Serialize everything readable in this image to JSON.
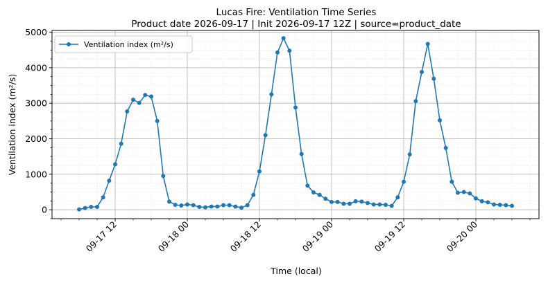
{
  "chart_data": {
    "type": "line",
    "title": "Lucas Fire: Ventilation Time Series",
    "subtitle": "Product date 2026-09-17 | Init 2026-09-17 12Z | source=product_date",
    "xlabel": "Time (local)",
    "ylabel": "Ventilation index (m²/s)",
    "x_tick_labels": [
      "09-17 12",
      "09-18 00",
      "09-18 12",
      "09-19 00",
      "09-19 12",
      "09-20 00"
    ],
    "x_tick_hours": [
      12,
      24,
      36,
      48,
      60,
      72
    ],
    "x_range_hours": [
      1.5,
      82.5
    ],
    "ylim": [
      -250,
      5050
    ],
    "y_ticks": [
      0,
      1000,
      2000,
      3000,
      4000,
      5000
    ],
    "grid": true,
    "legend_position": "top-left",
    "colors": {
      "series": "#1f77b4",
      "grid_major": "#b0b0b0",
      "grid_minor": "#e6e6e6"
    },
    "series": [
      {
        "name": "Ventilation index (m²/s)",
        "marker": "circle",
        "x_hours": [
          6,
          7,
          8,
          9,
          10,
          11,
          12,
          13,
          14,
          15,
          16,
          17,
          18,
          19,
          20,
          21,
          22,
          23,
          24,
          25,
          26,
          27,
          28,
          29,
          30,
          31,
          32,
          33,
          34,
          35,
          36,
          37,
          38,
          39,
          40,
          41,
          42,
          43,
          44,
          45,
          46,
          47,
          48,
          49,
          50,
          51,
          52,
          53,
          54,
          55,
          56,
          57,
          58,
          59,
          60,
          61,
          62,
          63,
          64,
          65,
          66,
          67,
          68,
          69,
          70,
          71,
          72,
          73,
          74,
          75,
          76,
          77,
          78
        ],
        "values": [
          10,
          50,
          80,
          80,
          350,
          820,
          1280,
          1860,
          2770,
          3100,
          3010,
          3230,
          3190,
          2500,
          950,
          230,
          140,
          120,
          150,
          130,
          80,
          70,
          90,
          90,
          130,
          130,
          90,
          60,
          130,
          420,
          1080,
          2100,
          3250,
          4430,
          4830,
          4480,
          2880,
          1570,
          680,
          490,
          420,
          310,
          220,
          220,
          170,
          170,
          240,
          230,
          190,
          150,
          150,
          140,
          110,
          350,
          790,
          1560,
          3060,
          3880,
          4670,
          3690,
          2520,
          1740,
          790,
          480,
          500,
          460,
          320,
          240,
          210,
          150,
          140,
          130,
          110
        ]
      }
    ]
  }
}
